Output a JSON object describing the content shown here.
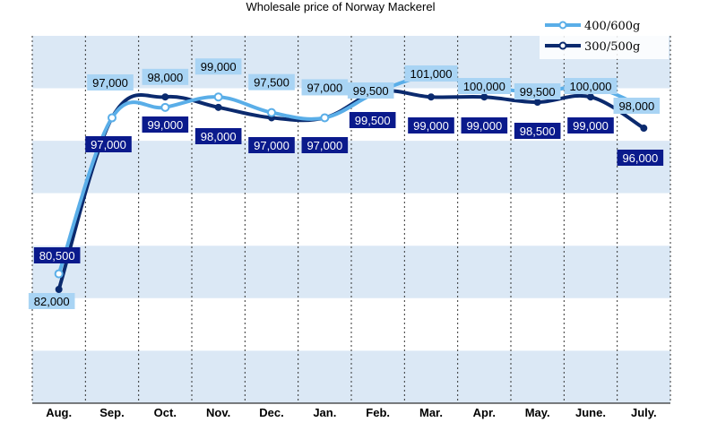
{
  "chart_data": {
    "type": "line",
    "title": "Wholesale price of Norway Mackerel",
    "categories": [
      "Aug.",
      "Sep.",
      "Oct.",
      "Nov.",
      "Dec.",
      "Jan.",
      "Feb.",
      "Mar.",
      "Apr.",
      "May.",
      "June.",
      "July."
    ],
    "series": [
      {
        "name": "400/600g",
        "values": [
          82000,
          97000,
          98000,
          99000,
          97500,
          97000,
          99500,
          101000,
          100000,
          99500,
          100000,
          98000
        ],
        "labels": [
          "82,000",
          "97,000",
          "98,000",
          "99,000",
          "97,500",
          "97,000",
          "99,500",
          "101,000",
          "100,000",
          "99,500",
          "100,000",
          "98,000"
        ],
        "color": "#5aaee8",
        "label_bg": "#a9d4f4"
      },
      {
        "name": "300/500g",
        "values": [
          80500,
          97000,
          99000,
          98000,
          97000,
          97000,
          99500,
          99000,
          99000,
          98500,
          99000,
          96000
        ],
        "labels": [
          "80,500",
          "97,000",
          "99,000",
          "98,000",
          "97,000",
          "97,000",
          "99,500",
          "99,000",
          "99,000",
          "98,500",
          "99,000",
          "96,000"
        ],
        "color": "#0b2a6e",
        "label_bg": "#0a1a8c"
      }
    ],
    "legend_position": "top-right",
    "grid": true,
    "band_colors": [
      "#dbe8f5",
      "#ffffff"
    ]
  }
}
